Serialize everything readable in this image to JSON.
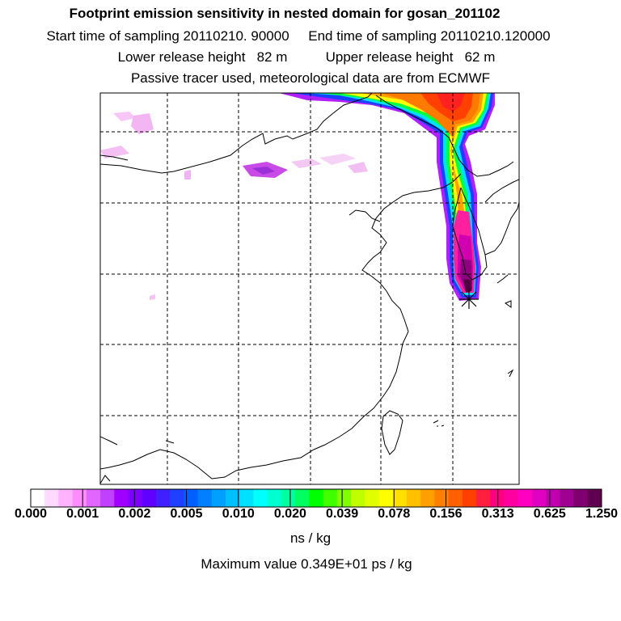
{
  "header": {
    "title": "Footprint emission sensitivity in nested domain for gosan_201102",
    "line2": "Start time of sampling 20110210. 90000     End time of sampling 20110210.120000",
    "line3": "Lower release height   82 m          Upper release height   62 m",
    "line4": "Passive tracer used, meteorological data are from ECMWF"
  },
  "colorbar": {
    "labels": [
      "0.000",
      "0.001",
      "0.002",
      "0.005",
      "0.010",
      "0.020",
      "0.039",
      "0.078",
      "0.156",
      "0.313",
      "0.625",
      "1.250"
    ],
    "colors": [
      "#ffffff",
      "#ffd9ff",
      "#ffb3ff",
      "#ff8cff",
      "#e066ff",
      "#c040ff",
      "#a000ff",
      "#8000ff",
      "#6000ff",
      "#4020ff",
      "#2040ff",
      "#0060ff",
      "#0080ff",
      "#00a0ff",
      "#00c0ff",
      "#00e0ff",
      "#00ffff",
      "#00ffd0",
      "#00ffa0",
      "#00ff60",
      "#00ff00",
      "#40ff00",
      "#80ff00",
      "#c0ff00",
      "#e0ff00",
      "#ffff00",
      "#ffe000",
      "#ffc000",
      "#ffa000",
      "#ff8000",
      "#ff6000",
      "#ff4000",
      "#ff2040",
      "#ff0080",
      "#ff00a0",
      "#ff00c0",
      "#e000c0",
      "#c000b0",
      "#a00090",
      "#800070",
      "#600050"
    ],
    "units": "ns / kg"
  },
  "max_value": "Maximum value  0.349E+01 ps / kg"
}
